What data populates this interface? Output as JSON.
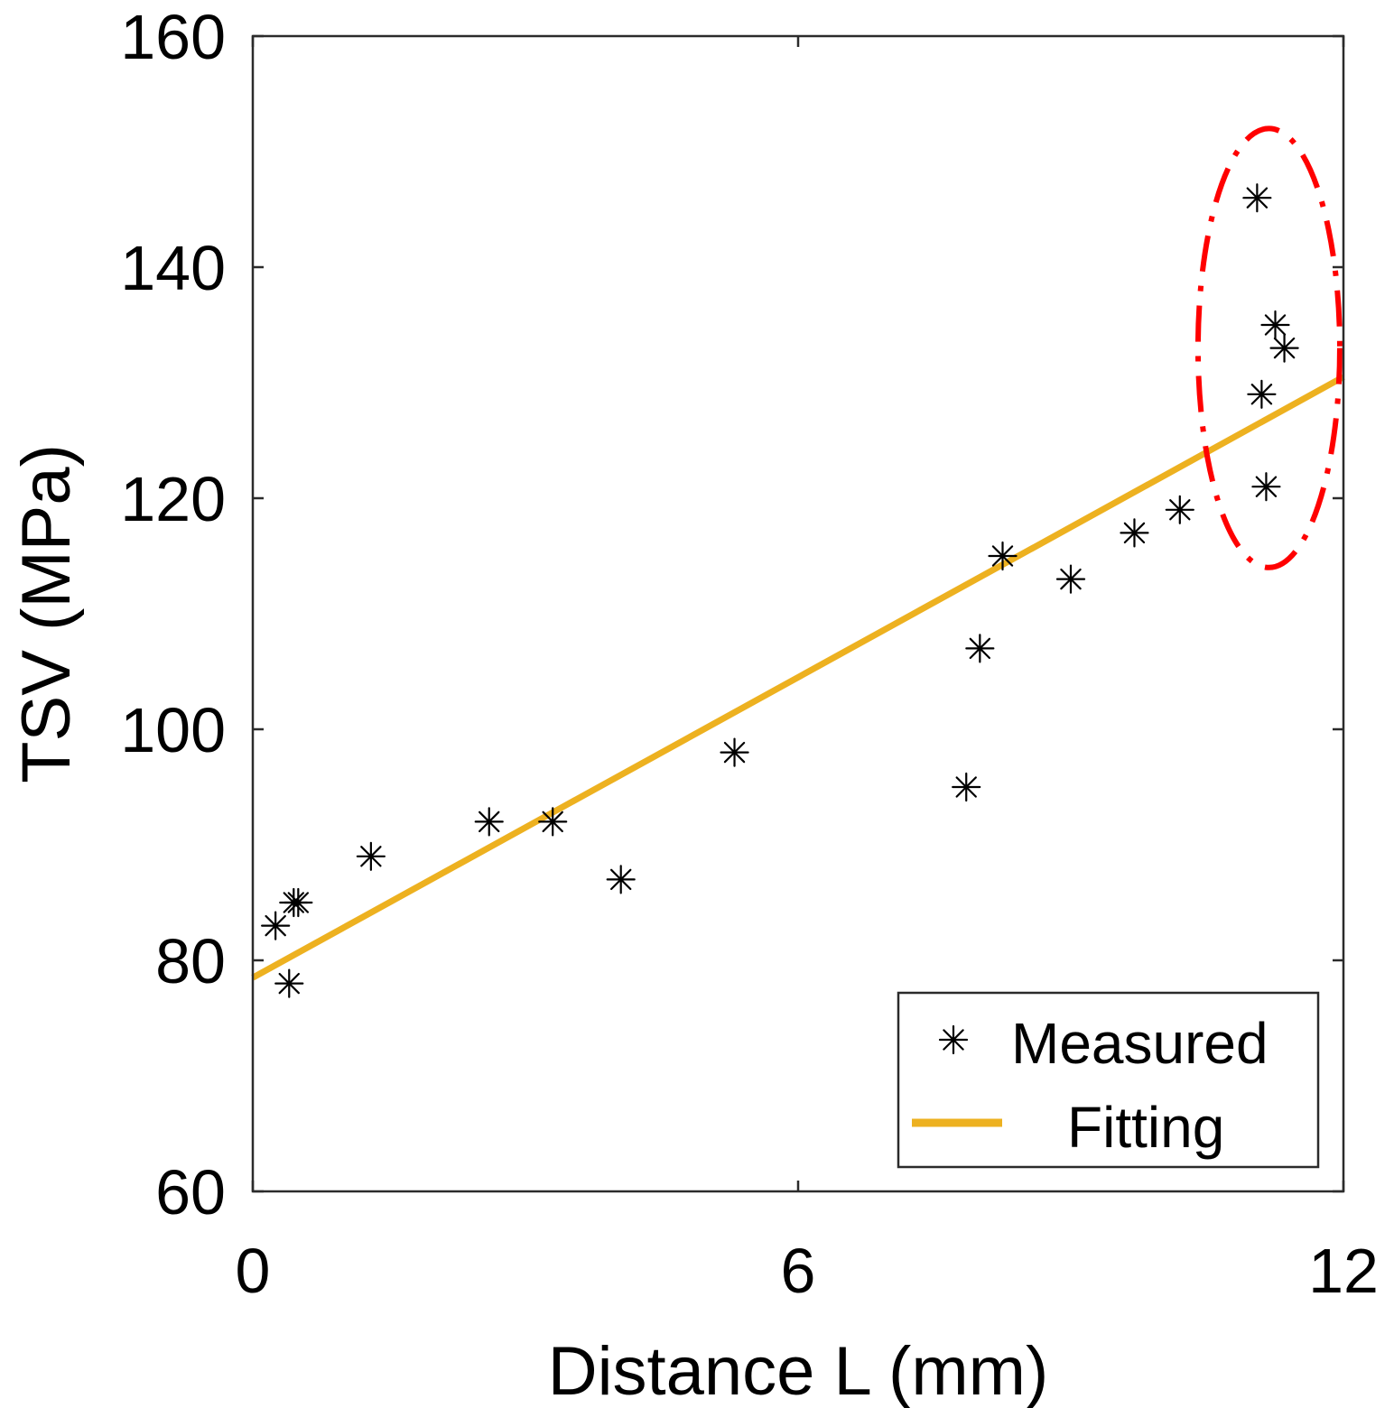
{
  "chart_data": {
    "type": "scatter",
    "title": "",
    "xlabel": "Distance L (mm)",
    "ylabel": "TSV (MPa)",
    "xlim": [
      0,
      12
    ],
    "ylim": [
      60,
      160
    ],
    "xticks": [
      0,
      6,
      12
    ],
    "yticks": [
      60,
      80,
      100,
      120,
      140,
      160
    ],
    "xtick_labels": [
      "0",
      "6",
      "12"
    ],
    "ytick_labels": [
      "60",
      "80",
      "100",
      "120",
      "140",
      "160"
    ],
    "grid": false,
    "legend_position": "bottom-right",
    "series": [
      {
        "name": "Measured",
        "kind": "scatter",
        "marker": "asterisk",
        "color": "#000000",
        "x": [
          0.25,
          0.4,
          0.45,
          0.5,
          1.3,
          2.6,
          3.3,
          4.05,
          5.3,
          7.85,
          8.0,
          8.25,
          9.0,
          9.7,
          10.2,
          11.05,
          11.1,
          11.15,
          11.25,
          11.35
        ],
        "y": [
          83,
          78,
          85,
          85,
          89,
          92,
          92,
          87,
          98,
          95,
          107,
          115,
          113,
          117,
          119,
          146,
          129,
          121,
          135,
          133
        ]
      },
      {
        "name": "Fitting",
        "kind": "line",
        "color": "#EDB120",
        "x": [
          0,
          12
        ],
        "y": [
          78.5,
          130.5
        ]
      }
    ],
    "annotations": [
      {
        "type": "ellipse",
        "style": "dash-dot",
        "color": "#FF0000",
        "note": "outliers",
        "center": [
          11.18,
          133
        ],
        "radii": [
          0.78,
          19
        ]
      }
    ]
  }
}
